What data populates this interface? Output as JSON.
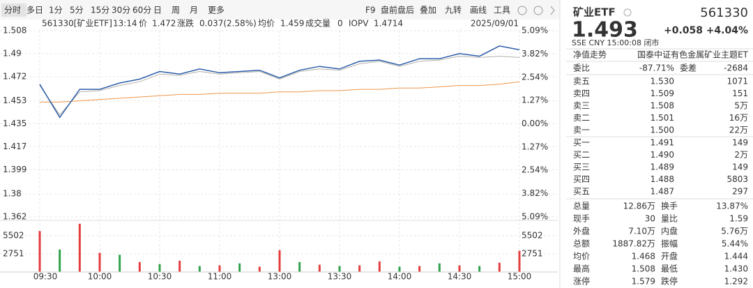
{
  "toolbar": {
    "periods": [
      "分时",
      "多日",
      "1分",
      "5分",
      "15分",
      "30分",
      "60分",
      "日",
      "周",
      "月",
      "更多"
    ],
    "tools": [
      "F9",
      "盘前盘后",
      "叠加",
      "九转",
      "画线",
      "工具"
    ]
  },
  "info_line": {
    "code": "561330[矿业ETF]",
    "time": "13:14",
    "price_label": "价",
    "price": "1.472",
    "change_label": "涨跌",
    "change": "0.037(2.58%)",
    "avg_label": "均价",
    "avg": "1.459",
    "volume_label": "成交量",
    "volume": "0",
    "iopv_label": "IOPV",
    "iopv": "1.4714",
    "date": "2025/09/01"
  },
  "chart_data": [
    {
      "type": "line",
      "categories": [
        "09:30",
        null,
        null,
        "10:00",
        null,
        null,
        "10:30",
        null,
        null,
        "11:00",
        null,
        null,
        "13:00",
        null,
        null,
        "13:30",
        null,
        null,
        "14:00",
        null,
        null,
        "14:30",
        null,
        null,
        "15:00"
      ],
      "series": [
        {
          "name": "价",
          "color": "#2a5caa",
          "values": [
            1.466,
            1.44,
            1.462,
            1.462,
            1.467,
            1.47,
            1.476,
            1.474,
            1.478,
            1.475,
            1.476,
            1.477,
            1.471,
            1.477,
            1.48,
            1.478,
            1.484,
            1.485,
            1.481,
            1.486,
            1.486,
            1.49,
            1.488,
            1.496,
            1.493
          ]
        },
        {
          "name": "IOPV",
          "color": "#b5b0a8",
          "values": [
            1.465,
            1.442,
            1.46,
            1.461,
            1.465,
            1.468,
            1.474,
            1.473,
            1.476,
            1.474,
            1.475,
            1.476,
            1.47,
            1.476,
            1.478,
            1.477,
            1.482,
            1.484,
            1.48,
            1.484,
            1.485,
            1.488,
            1.487,
            1.488,
            1.487
          ]
        },
        {
          "name": "均价",
          "color": "#f0964a",
          "values": [
            1.452,
            1.452,
            1.453,
            1.454,
            1.455,
            1.456,
            1.457,
            1.458,
            1.458,
            1.459,
            1.459,
            1.459,
            1.46,
            1.46,
            1.461,
            1.461,
            1.462,
            1.462,
            1.463,
            1.463,
            1.464,
            1.465,
            1.465,
            1.466,
            1.468
          ]
        }
      ],
      "ylim": [
        1.362,
        1.508
      ],
      "yticks": [
        1.508,
        1.49,
        1.472,
        1.453,
        1.435,
        1.417,
        1.399,
        1.38,
        1.362
      ],
      "y2lim": [
        -5.09,
        5.09
      ],
      "y2ticks": [
        {
          "value": 5.09,
          "label": "5.09%"
        },
        {
          "value": 3.82,
          "label": "3.82%"
        },
        {
          "value": 2.54,
          "label": "2.54%"
        },
        {
          "value": 1.27,
          "label": "1.27%"
        },
        {
          "value": 0,
          "label": "0.00%"
        },
        {
          "value": -1.27,
          "label": "1.27%"
        },
        {
          "value": -2.54,
          "label": "2.54%"
        },
        {
          "value": -3.82,
          "label": "3.82%"
        },
        {
          "value": -5.09,
          "label": "5.09%"
        }
      ],
      "grid": true
    },
    {
      "type": "bar",
      "values": [
        6200,
        3400,
        7300,
        2900,
        2600,
        1500,
        1200,
        1700,
        900,
        1000,
        1300,
        800,
        3300,
        1500,
        1100,
        900,
        1000,
        1600,
        800,
        900,
        1300,
        1000,
        900,
        1400,
        3200
      ],
      "colors": [
        "#e43c3c",
        "#2fa14a",
        "#e43c3c",
        "#e43c3c",
        "#2fa14a",
        "#e43c3c",
        "#2fa14a",
        "#e43c3c",
        "#2fa14a",
        "#e43c3c",
        "#2fa14a",
        "#e43c3c",
        "#e43c3c",
        "#2fa14a",
        "#e43c3c",
        "#2fa14a",
        "#e43c3c",
        "#e43c3c",
        "#2fa14a",
        "#e43c3c",
        "#2fa14a",
        "#e43c3c",
        "#2fa14a",
        "#e43c3c",
        "#e43c3c"
      ],
      "ylim": [
        0,
        7600
      ],
      "yticks": [
        5502,
        2751
      ]
    }
  ],
  "quote": {
    "name": "矿业ETF",
    "code": "561330",
    "price": "1.493",
    "change": "+0.058",
    "change_pct": "+4.04%",
    "status": "SSE  CNY  15:00:08  闭市",
    "nav_label": "净值走势",
    "nav_index": "国泰中证有色金属矿业主题ET",
    "ratio_label": "委比",
    "ratio": "-87.71%",
    "diff_label": "委差",
    "diff": "-2684",
    "sell": [
      [
        "卖五",
        "1.530",
        "1071"
      ],
      [
        "卖四",
        "1.509",
        "151"
      ],
      [
        "卖三",
        "1.508",
        "5万"
      ],
      [
        "卖二",
        "1.501",
        "16万"
      ],
      [
        "卖一",
        "1.500",
        "22万"
      ]
    ],
    "buy": [
      [
        "买一",
        "1.491",
        "149"
      ],
      [
        "买二",
        "1.490",
        "2万"
      ],
      [
        "买三",
        "1.489",
        "149"
      ],
      [
        "买四",
        "1.488",
        "5803"
      ],
      [
        "买五",
        "1.487",
        "297"
      ]
    ],
    "stats": [
      [
        "总量",
        "12.86万",
        "换手",
        "13.87%"
      ],
      [
        "现手",
        "30",
        "量比",
        "1.59"
      ],
      [
        "外盘",
        "7.10万",
        "内盘",
        "5.76万"
      ],
      [
        "总额",
        "1887.82万",
        "振幅",
        "5.44%"
      ],
      [
        "均价",
        "1.468",
        "开盘",
        "1.444"
      ],
      [
        "最高",
        "1.508",
        "最低",
        "1.430"
      ],
      [
        "涨停",
        "1.579",
        "跌停",
        "1.292"
      ]
    ]
  }
}
